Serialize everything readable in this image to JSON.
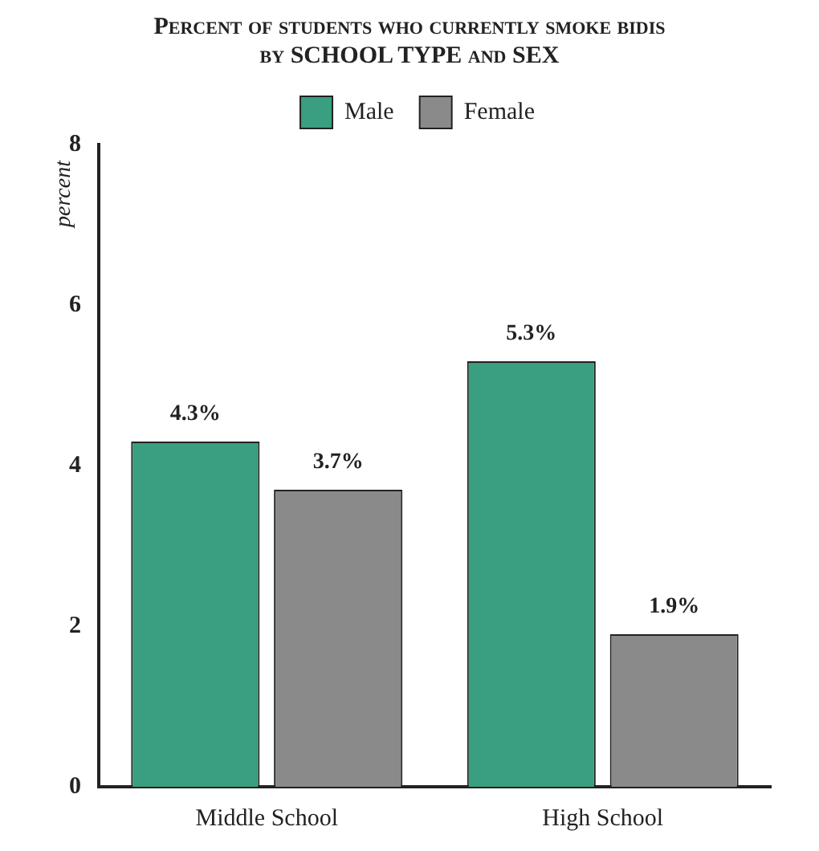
{
  "chart_data": {
    "type": "bar",
    "title": "Percent of students who currently smoke bidis",
    "subtitle": "by SCHOOL TYPE and SEX",
    "ylabel": "percent",
    "categories": [
      "Middle School",
      "High School"
    ],
    "series": [
      {
        "name": "Male",
        "color": "#3a9e80",
        "values": [
          4.3,
          5.3
        ],
        "value_labels": [
          "4.3%",
          "5.3%"
        ]
      },
      {
        "name": "Female",
        "color": "#8a8a8a",
        "values": [
          3.7,
          1.9
        ],
        "value_labels": [
          "3.7%",
          "1.9%"
        ]
      }
    ],
    "ylim": [
      0,
      8
    ],
    "yticks": [
      0,
      2,
      4,
      6,
      8
    ],
    "grid": false,
    "legend": "top"
  }
}
